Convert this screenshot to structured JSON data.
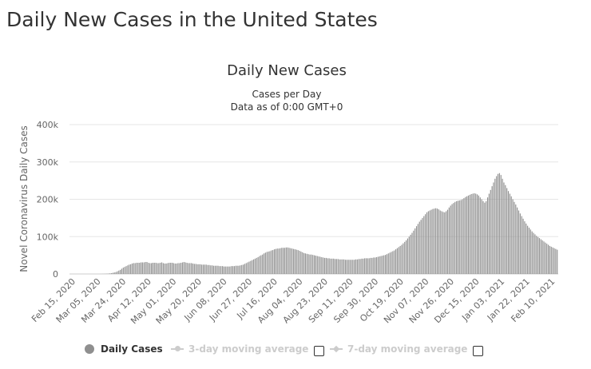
{
  "page": {
    "heading": "Daily New Cases in the United States"
  },
  "legend": {
    "daily_cases": "Daily Cases",
    "moving_3day": "3-day moving average",
    "moving_7day": "7-day moving average"
  },
  "colors": {
    "bars": "#8f8f8f",
    "grid": "#e6e6e6",
    "axis_text": "#666666",
    "inactive_legend": "#cccccc"
  },
  "chart_data": {
    "type": "bar",
    "title": "Daily New Cases",
    "subtitle_lines": [
      "Cases per Day",
      "Data as of 0:00 GMT+0"
    ],
    "ylabel": "Novel Coronavirus Daily Cases",
    "xlabel": "",
    "ylim": [
      0,
      400000
    ],
    "yticks": [
      0,
      100000,
      200000,
      300000,
      400000
    ],
    "ytick_labels": [
      "0",
      "100k",
      "200k",
      "300k",
      "400k"
    ],
    "x_range": [
      "2020-02-15",
      "2021-02-24"
    ],
    "xtick_labels": [
      "Feb 15, 2020",
      "Mar 05, 2020",
      "Mar 24, 2020",
      "Apr 12, 2020",
      "May 01, 2020",
      "May 20, 2020",
      "Jun 08, 2020",
      "Jun 27, 2020",
      "Jul 16, 2020",
      "Aug 04, 2020",
      "Aug 23, 2020",
      "Sep 11, 2020",
      "Sep 30, 2020",
      "Oct 19, 2020",
      "Nov 07, 2020",
      "Nov 26, 2020",
      "Dec 15, 2020",
      "Jan 03, 2021",
      "Jan 22, 2021",
      "Feb 10, 2021"
    ],
    "grid": true,
    "legend_position": "bottom",
    "series": [
      {
        "name": "Daily Cases",
        "values": [
          0,
          0,
          0,
          0,
          0,
          0,
          0,
          0,
          0,
          0,
          0,
          0,
          0,
          0,
          0,
          0,
          0,
          0,
          0,
          0,
          0,
          100,
          200,
          300,
          500,
          700,
          1000,
          1500,
          2000,
          3000,
          4000,
          5000,
          7000,
          9000,
          11000,
          14000,
          17000,
          19000,
          21000,
          23000,
          25000,
          26000,
          28000,
          29000,
          29000,
          30000,
          30000,
          30000,
          31000,
          31000,
          31000,
          32000,
          32000,
          30000,
          29000,
          29000,
          30000,
          30000,
          30000,
          29000,
          29000,
          30000,
          31000,
          29000,
          28000,
          28000,
          29000,
          30000,
          30000,
          30000,
          29000,
          28000,
          28000,
          29000,
          29000,
          30000,
          31000,
          32000,
          31000,
          30000,
          29000,
          29000,
          29000,
          28000,
          27000,
          27000,
          26000,
          26000,
          26000,
          25000,
          25000,
          25000,
          25000,
          24000,
          24000,
          23000,
          23000,
          22000,
          22000,
          22000,
          22000,
          21000,
          21000,
          21000,
          20000,
          20000,
          20000,
          20000,
          20000,
          21000,
          21000,
          21000,
          22000,
          22000,
          22000,
          23000,
          24000,
          25000,
          27000,
          29000,
          31000,
          33000,
          35000,
          37000,
          39000,
          41000,
          43000,
          45000,
          48000,
          50000,
          52000,
          55000,
          57000,
          59000,
          60000,
          61000,
          63000,
          64000,
          66000,
          67000,
          68000,
          68000,
          69000,
          70000,
          70000,
          70000,
          71000,
          71000,
          70000,
          69000,
          68000,
          67000,
          66000,
          65000,
          64000,
          62000,
          60000,
          58000,
          56000,
          55000,
          54000,
          53000,
          52000,
          52000,
          51000,
          50000,
          49000,
          48000,
          47000,
          46000,
          45000,
          44000,
          43000,
          43000,
          42000,
          42000,
          41000,
          41000,
          41000,
          40000,
          40000,
          40000,
          39000,
          39000,
          39000,
          39000,
          38000,
          38000,
          38000,
          38000,
          38000,
          38000,
          38000,
          39000,
          39000,
          40000,
          40000,
          41000,
          41000,
          42000,
          42000,
          42000,
          42000,
          43000,
          43000,
          44000,
          44000,
          45000,
          46000,
          47000,
          48000,
          49000,
          50000,
          51000,
          53000,
          55000,
          57000,
          59000,
          61000,
          63000,
          66000,
          69000,
          72000,
          75000,
          78000,
          82000,
          86000,
          90000,
          95000,
          100000,
          105000,
          110000,
          116000,
          122000,
          128000,
          134000,
          140000,
          145000,
          150000,
          155000,
          160000,
          165000,
          168000,
          170000,
          172000,
          174000,
          175000,
          176000,
          175000,
          173000,
          170000,
          168000,
          166000,
          165000,
          168000,
          172000,
          178000,
          183000,
          187000,
          190000,
          193000,
          195000,
          196000,
          197000,
          198000,
          200000,
          203000,
          206000,
          208000,
          210000,
          212000,
          214000,
          215000,
          216000,
          215000,
          213000,
          210000,
          205000,
          200000,
          195000,
          191000,
          195000,
          205000,
          215000,
          225000,
          235000,
          245000,
          255000,
          262000,
          268000,
          270000,
          265000,
          255000,
          245000,
          238000,
          230000,
          222000,
          215000,
          208000,
          200000,
          193000,
          186000,
          178000,
          170000,
          162000,
          155000,
          148000,
          141000,
          135000,
          129000,
          124000,
          119000,
          114000,
          110000,
          106000,
          102000,
          99000,
          96000,
          93000,
          90000,
          87000,
          84000,
          81000,
          78000,
          75000,
          73000,
          71000,
          69000,
          67000,
          65000
        ]
      }
    ]
  }
}
